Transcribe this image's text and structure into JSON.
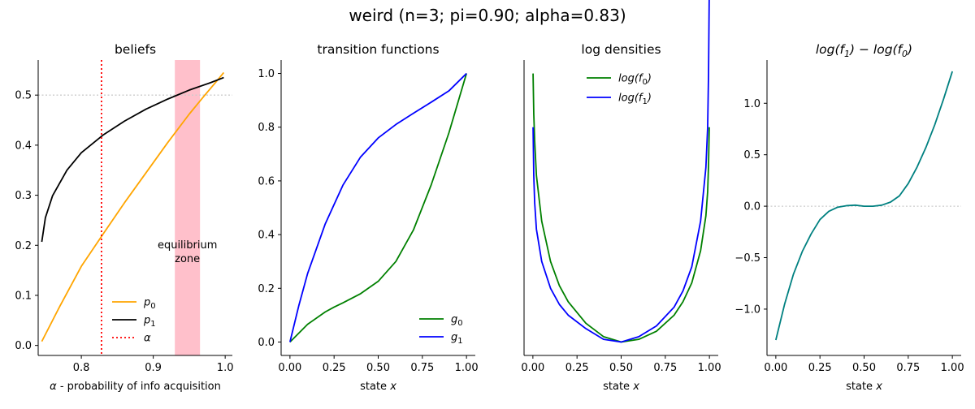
{
  "figure": {
    "suptitle": "weird (n=3; pi=0.90; alpha=0.83)"
  },
  "chart_data": [
    {
      "type": "line",
      "title": "beliefs",
      "xlabel": "α - probability of info acquisition",
      "ylabel": "",
      "xlim": [
        0.74,
        1.01
      ],
      "ylim": [
        -0.02,
        0.57
      ],
      "xticks": [
        "0.8",
        "0.9",
        "1.0"
      ],
      "yticks": [
        "0.0",
        "0.1",
        "0.2",
        "0.3",
        "0.4",
        "0.5"
      ],
      "series": [
        {
          "name": "p0",
          "color": "#ffa500",
          "x": [
            0.745,
            0.77,
            0.8,
            0.83,
            0.86,
            0.89,
            0.92,
            0.95,
            0.97,
            0.99,
            0.998
          ],
          "y": [
            0.008,
            0.078,
            0.158,
            0.222,
            0.285,
            0.345,
            0.405,
            0.462,
            0.497,
            0.531,
            0.545
          ]
        },
        {
          "name": "p1",
          "color": "#000000",
          "x": [
            0.745,
            0.75,
            0.76,
            0.78,
            0.8,
            0.83,
            0.86,
            0.89,
            0.92,
            0.95,
            0.98,
            0.998
          ],
          "y": [
            0.207,
            0.255,
            0.299,
            0.35,
            0.385,
            0.42,
            0.448,
            0.472,
            0.492,
            0.51,
            0.525,
            0.535
          ]
        }
      ],
      "vline": {
        "name": "α",
        "x": 0.828,
        "color": "#ff0000"
      },
      "hline": {
        "y": 0.5,
        "color": "#cccccc"
      },
      "band": {
        "x": [
          0.93,
          0.965
        ],
        "color": "#ffc0cb",
        "label_lines": [
          "equilibrium",
          "zone"
        ]
      },
      "legend": {
        "position": "lower-center",
        "entries": [
          {
            "sym": "p",
            "sub": "0",
            "style": "solid",
            "color": "#ffa500"
          },
          {
            "sym": "p",
            "sub": "1",
            "style": "solid",
            "color": "#000000"
          },
          {
            "sym": "α",
            "sub": "",
            "style": "dotted",
            "color": "#ff0000"
          }
        ]
      }
    },
    {
      "type": "line",
      "title": "transition functions",
      "xlabel": "state x",
      "ylabel": "",
      "xlim": [
        -0.05,
        1.05
      ],
      "ylim": [
        -0.05,
        1.05
      ],
      "xticks": [
        "0.00",
        "0.25",
        "0.50",
        "0.75",
        "1.00"
      ],
      "yticks": [
        "0.0",
        "0.2",
        "0.4",
        "0.6",
        "0.8",
        "1.0"
      ],
      "series": [
        {
          "name": "g0",
          "color": "#008000",
          "x": [
            0,
            0.1,
            0.2,
            0.25,
            0.3,
            0.4,
            0.5,
            0.6,
            0.7,
            0.8,
            0.9,
            1.0
          ],
          "y": [
            0,
            0.066,
            0.112,
            0.13,
            0.146,
            0.18,
            0.226,
            0.3,
            0.418,
            0.585,
            0.778,
            1.0
          ]
        },
        {
          "name": "g1",
          "color": "#0000ff",
          "x": [
            0,
            0.05,
            0.1,
            0.2,
            0.3,
            0.4,
            0.5,
            0.6,
            0.7,
            0.8,
            0.9,
            1.0
          ],
          "y": [
            0,
            0.135,
            0.255,
            0.44,
            0.584,
            0.689,
            0.76,
            0.81,
            0.852,
            0.893,
            0.935,
            1.0
          ]
        }
      ],
      "legend": {
        "position": "lower-right",
        "entries": [
          {
            "sym": "g",
            "sub": "0",
            "style": "solid",
            "color": "#008000"
          },
          {
            "sym": "g",
            "sub": "1",
            "style": "solid",
            "color": "#0000ff"
          }
        ]
      }
    },
    {
      "type": "line",
      "title": "log densities",
      "xlabel": "state x",
      "ylabel": "",
      "xlim": [
        -0.05,
        1.05
      ],
      "ylim": [
        -0.05,
        1.05
      ],
      "xticks": [
        "0.00",
        "0.25",
        "0.50",
        "0.75",
        "1.00"
      ],
      "yticks": [],
      "series": [
        {
          "name": "log(f0)",
          "color": "#008000",
          "x": [
            0.001,
            0.005,
            0.01,
            0.02,
            0.05,
            0.1,
            0.15,
            0.2,
            0.3,
            0.4,
            0.5,
            0.6,
            0.7,
            0.8,
            0.85,
            0.9,
            0.95,
            0.98,
            0.99,
            0.995,
            0.999
          ],
          "y": [
            1.0,
            0.85,
            0.75,
            0.62,
            0.45,
            0.3,
            0.21,
            0.15,
            0.07,
            0.02,
            0.0,
            0.01,
            0.04,
            0.1,
            0.15,
            0.22,
            0.34,
            0.47,
            0.56,
            0.66,
            0.8
          ]
        },
        {
          "name": "log(f1)",
          "color": "#0000ff",
          "x": [
            0.001,
            0.005,
            0.01,
            0.02,
            0.05,
            0.1,
            0.15,
            0.2,
            0.3,
            0.4,
            0.5,
            0.6,
            0.7,
            0.8,
            0.85,
            0.9,
            0.95,
            0.98,
            0.99,
            0.995,
            0.999
          ],
          "y": [
            0.8,
            0.62,
            0.52,
            0.42,
            0.3,
            0.2,
            0.14,
            0.1,
            0.05,
            0.01,
            0.0,
            0.02,
            0.06,
            0.13,
            0.19,
            0.28,
            0.45,
            0.65,
            0.8,
            1.0,
            1.3
          ]
        }
      ],
      "legend": {
        "position": "top-center",
        "entries": [
          {
            "sym": "log(f",
            "sub": "0",
            "tail": ")",
            "style": "solid",
            "color": "#008000"
          },
          {
            "sym": "log(f",
            "sub": "1",
            "tail": ")",
            "style": "solid",
            "color": "#0000ff"
          }
        ]
      }
    },
    {
      "type": "line",
      "title": "log(f1) − log(f0)",
      "xlabel": "state x",
      "ylabel": "",
      "xlim": [
        -0.05,
        1.05
      ],
      "ylim": [
        -1.45,
        1.42
      ],
      "xticks": [
        "0.00",
        "0.25",
        "0.50",
        "0.75",
        "1.00"
      ],
      "yticks": [
        "−1.0",
        "−0.5",
        "0.0",
        "0.5",
        "1.0"
      ],
      "series": [
        {
          "name": "difference",
          "color": "#008080",
          "x": [
            0.0,
            0.05,
            0.1,
            0.15,
            0.2,
            0.25,
            0.3,
            0.35,
            0.4,
            0.45,
            0.5,
            0.55,
            0.6,
            0.65,
            0.7,
            0.75,
            0.8,
            0.85,
            0.9,
            0.95,
            1.0
          ],
          "y": [
            -1.3,
            -0.95,
            -0.66,
            -0.44,
            -0.27,
            -0.13,
            -0.05,
            -0.01,
            0.005,
            0.01,
            0.0,
            0.0,
            0.01,
            0.04,
            0.1,
            0.22,
            0.38,
            0.57,
            0.79,
            1.04,
            1.31
          ]
        }
      ],
      "hline": {
        "y": 0.0,
        "color": "#cccccc"
      }
    }
  ]
}
